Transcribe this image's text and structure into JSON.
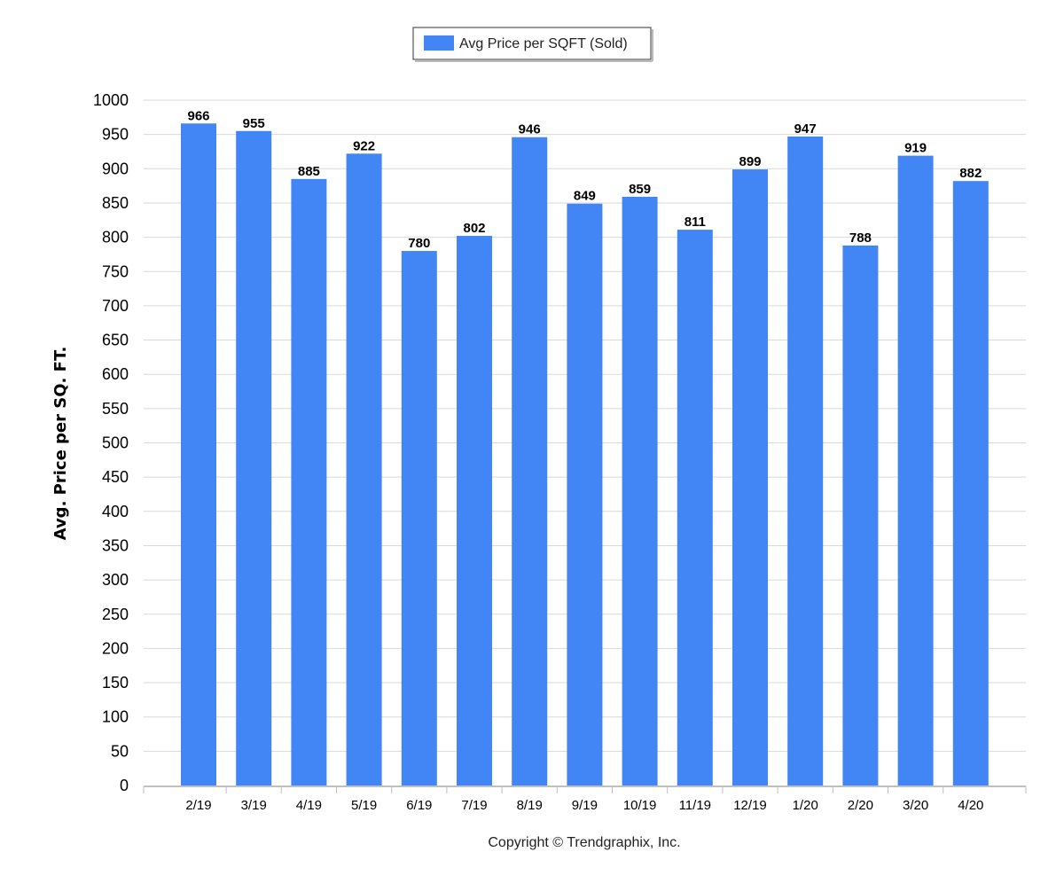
{
  "chart_data": {
    "type": "bar",
    "categories": [
      "2/19",
      "3/19",
      "4/19",
      "5/19",
      "6/19",
      "7/19",
      "8/19",
      "9/19",
      "10/19",
      "11/19",
      "12/19",
      "1/20",
      "2/20",
      "3/20",
      "4/20"
    ],
    "series": [
      {
        "name": "Avg Price per SQFT (Sold)",
        "values": [
          966,
          955,
          885,
          922,
          780,
          802,
          946,
          849,
          859,
          811,
          899,
          947,
          788,
          919,
          882
        ],
        "color": "#4285f4"
      }
    ],
    "title": "",
    "xlabel": "",
    "ylabel": "Avg. Price per SQ. FT.",
    "ylim": [
      0,
      1000
    ],
    "yticks": [
      0,
      50,
      100,
      150,
      200,
      250,
      300,
      350,
      400,
      450,
      500,
      550,
      600,
      650,
      700,
      750,
      800,
      850,
      900,
      950,
      1000
    ],
    "grid": true,
    "legend_position": "top-center",
    "data_labels": true
  },
  "footer": {
    "copyright": "Copyright © Trendgraphix, Inc."
  }
}
